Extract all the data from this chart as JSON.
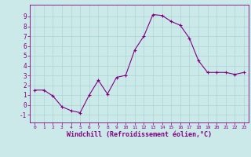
{
  "x": [
    0,
    1,
    2,
    3,
    4,
    5,
    6,
    7,
    8,
    9,
    10,
    11,
    12,
    13,
    14,
    15,
    16,
    17,
    18,
    19,
    20,
    21,
    22,
    23
  ],
  "y": [
    1.5,
    1.5,
    0.9,
    -0.2,
    -0.6,
    -0.8,
    1.0,
    2.5,
    1.1,
    2.8,
    3.0,
    5.6,
    7.0,
    9.2,
    9.1,
    8.5,
    8.1,
    6.8,
    4.5,
    3.3,
    3.3,
    3.3,
    3.1,
    3.3
  ],
  "xlim": [
    -0.5,
    23.5
  ],
  "ylim": [
    -1.8,
    10.2
  ],
  "yticks": [
    -1,
    0,
    1,
    2,
    3,
    4,
    5,
    6,
    7,
    8,
    9
  ],
  "xticks": [
    0,
    1,
    2,
    3,
    4,
    5,
    6,
    7,
    8,
    9,
    10,
    11,
    12,
    13,
    14,
    15,
    16,
    17,
    18,
    19,
    20,
    21,
    22,
    23
  ],
  "xlabel": "Windchill (Refroidissement éolien,°C)",
  "line_color": "#800080",
  "marker": "+",
  "bg_color": "#cce9e9",
  "grid_color": "#aad4d4",
  "tick_color": "#800080",
  "label_color": "#800080"
}
